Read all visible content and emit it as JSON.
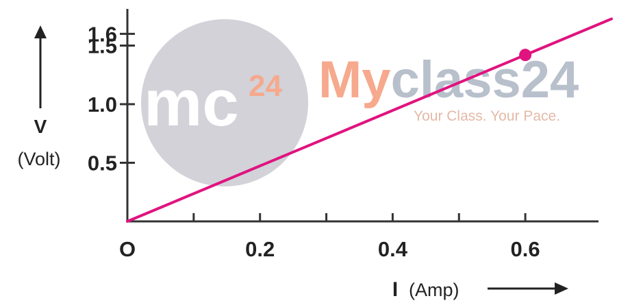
{
  "chart_data": {
    "type": "line",
    "x": [
      0,
      0.6
    ],
    "y": [
      0,
      1.42
    ],
    "extrapolate_to_x": 0.73,
    "highlight_point": {
      "x": 0.6,
      "y": 1.42
    },
    "xlim": [
      0,
      0.73
    ],
    "ylim": [
      0,
      1.6
    ],
    "x_ticks": [
      0.1,
      0.2,
      0.3,
      0.4,
      0.5,
      0.6
    ],
    "x_tick_labels": [
      {
        "value": 0.2,
        "label": "0.2"
      },
      {
        "value": 0.4,
        "label": "0.4"
      },
      {
        "value": 0.6,
        "label": "0.6"
      }
    ],
    "y_ticks": [
      0.5,
      1.0,
      1.5,
      1.6
    ],
    "y_tick_labels": [
      {
        "value": 0.5,
        "label": "0.5"
      },
      {
        "value": 1.0,
        "label": "1.0"
      },
      {
        "value": 1.5,
        "label": "1.5"
      },
      {
        "value": 1.6,
        "label": "1.6"
      }
    ],
    "origin_label": "O",
    "xlabel_symbol": "I",
    "xlabel_unit": "(Amp)",
    "ylabel_symbol": "V",
    "ylabel_unit": "(Volt)",
    "grid": false,
    "line_color": "#e0137f",
    "axis_color": "#333333"
  },
  "watermark": {
    "logo_text": "mc",
    "logo_superscript": "24",
    "brand_prefix": "My",
    "brand_suffix": "class24",
    "tagline": "Your Class. Your Pace.",
    "circle_color": "#d2d2d8",
    "accent_color": "#f6a98d",
    "brand_color": "#b8c0cc"
  }
}
